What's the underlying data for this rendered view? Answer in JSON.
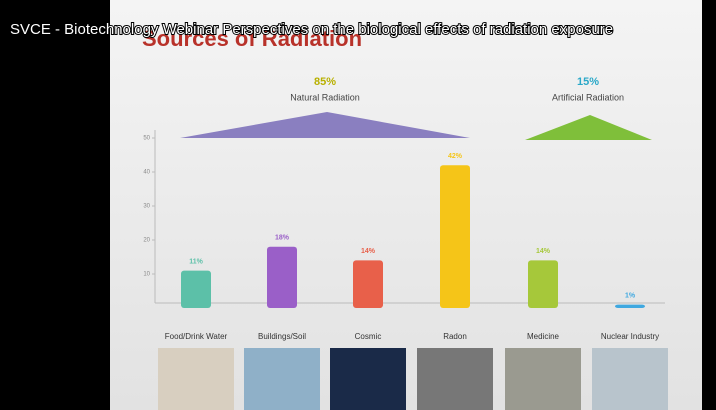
{
  "video": {
    "title": "SVCE - Biotechnology Webinar Perspectives on the biological effects of radiation exposure"
  },
  "chart_data": {
    "type": "bar",
    "title": "Sources of Radiation",
    "groups": [
      {
        "share": "85%",
        "name": "Natural Radiation"
      },
      {
        "share": "15%",
        "name": "Artificial Radiation"
      }
    ],
    "categories": [
      "Food/Drink Water",
      "Buildings/Soil",
      "Cosmic",
      "Radon",
      "Medicine",
      "Nuclear Industry"
    ],
    "values": [
      11,
      18,
      14,
      42,
      14,
      1
    ],
    "value_labels": [
      "11%",
      "18%",
      "14%",
      "42%",
      "14%",
      "1%"
    ],
    "colors": [
      "#5cc0a8",
      "#9a5fc8",
      "#e8604a",
      "#f5c518",
      "#a6c83a",
      "#3fa8e0"
    ],
    "ylim": [
      0,
      50
    ],
    "yticks": [
      10,
      20,
      30,
      40,
      50
    ]
  }
}
